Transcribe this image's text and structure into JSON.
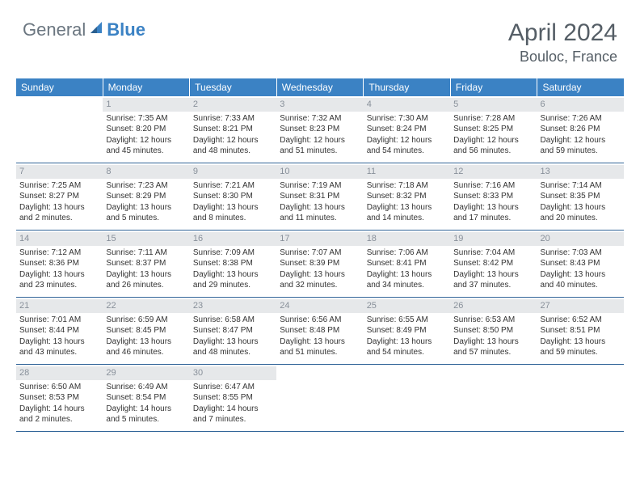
{
  "brand": {
    "part1": "General",
    "part2": "Blue"
  },
  "title": "April 2024",
  "location": "Bouloc, France",
  "weekdays": [
    "Sunday",
    "Monday",
    "Tuesday",
    "Wednesday",
    "Thursday",
    "Friday",
    "Saturday"
  ],
  "colors": {
    "header_bar": "#3b82c4",
    "daynum_bg": "#e6e8ea",
    "daynum_text": "#88909a",
    "rule": "#336699",
    "logo_gray": "#6b7680",
    "title_text": "#555e66"
  },
  "fonts": {
    "title_pt": 30,
    "location_pt": 18,
    "weekday_pt": 12,
    "body_pt": 10,
    "daynum_pt": 11
  },
  "weeks": [
    [
      {
        "n": "",
        "lines": []
      },
      {
        "n": "1",
        "lines": [
          "Sunrise: 7:35 AM",
          "Sunset: 8:20 PM",
          "Daylight: 12 hours",
          "and 45 minutes."
        ]
      },
      {
        "n": "2",
        "lines": [
          "Sunrise: 7:33 AM",
          "Sunset: 8:21 PM",
          "Daylight: 12 hours",
          "and 48 minutes."
        ]
      },
      {
        "n": "3",
        "lines": [
          "Sunrise: 7:32 AM",
          "Sunset: 8:23 PM",
          "Daylight: 12 hours",
          "and 51 minutes."
        ]
      },
      {
        "n": "4",
        "lines": [
          "Sunrise: 7:30 AM",
          "Sunset: 8:24 PM",
          "Daylight: 12 hours",
          "and 54 minutes."
        ]
      },
      {
        "n": "5",
        "lines": [
          "Sunrise: 7:28 AM",
          "Sunset: 8:25 PM",
          "Daylight: 12 hours",
          "and 56 minutes."
        ]
      },
      {
        "n": "6",
        "lines": [
          "Sunrise: 7:26 AM",
          "Sunset: 8:26 PM",
          "Daylight: 12 hours",
          "and 59 minutes."
        ]
      }
    ],
    [
      {
        "n": "7",
        "lines": [
          "Sunrise: 7:25 AM",
          "Sunset: 8:27 PM",
          "Daylight: 13 hours",
          "and 2 minutes."
        ]
      },
      {
        "n": "8",
        "lines": [
          "Sunrise: 7:23 AM",
          "Sunset: 8:29 PM",
          "Daylight: 13 hours",
          "and 5 minutes."
        ]
      },
      {
        "n": "9",
        "lines": [
          "Sunrise: 7:21 AM",
          "Sunset: 8:30 PM",
          "Daylight: 13 hours",
          "and 8 minutes."
        ]
      },
      {
        "n": "10",
        "lines": [
          "Sunrise: 7:19 AM",
          "Sunset: 8:31 PM",
          "Daylight: 13 hours",
          "and 11 minutes."
        ]
      },
      {
        "n": "11",
        "lines": [
          "Sunrise: 7:18 AM",
          "Sunset: 8:32 PM",
          "Daylight: 13 hours",
          "and 14 minutes."
        ]
      },
      {
        "n": "12",
        "lines": [
          "Sunrise: 7:16 AM",
          "Sunset: 8:33 PM",
          "Daylight: 13 hours",
          "and 17 minutes."
        ]
      },
      {
        "n": "13",
        "lines": [
          "Sunrise: 7:14 AM",
          "Sunset: 8:35 PM",
          "Daylight: 13 hours",
          "and 20 minutes."
        ]
      }
    ],
    [
      {
        "n": "14",
        "lines": [
          "Sunrise: 7:12 AM",
          "Sunset: 8:36 PM",
          "Daylight: 13 hours",
          "and 23 minutes."
        ]
      },
      {
        "n": "15",
        "lines": [
          "Sunrise: 7:11 AM",
          "Sunset: 8:37 PM",
          "Daylight: 13 hours",
          "and 26 minutes."
        ]
      },
      {
        "n": "16",
        "lines": [
          "Sunrise: 7:09 AM",
          "Sunset: 8:38 PM",
          "Daylight: 13 hours",
          "and 29 minutes."
        ]
      },
      {
        "n": "17",
        "lines": [
          "Sunrise: 7:07 AM",
          "Sunset: 8:39 PM",
          "Daylight: 13 hours",
          "and 32 minutes."
        ]
      },
      {
        "n": "18",
        "lines": [
          "Sunrise: 7:06 AM",
          "Sunset: 8:41 PM",
          "Daylight: 13 hours",
          "and 34 minutes."
        ]
      },
      {
        "n": "19",
        "lines": [
          "Sunrise: 7:04 AM",
          "Sunset: 8:42 PM",
          "Daylight: 13 hours",
          "and 37 minutes."
        ]
      },
      {
        "n": "20",
        "lines": [
          "Sunrise: 7:03 AM",
          "Sunset: 8:43 PM",
          "Daylight: 13 hours",
          "and 40 minutes."
        ]
      }
    ],
    [
      {
        "n": "21",
        "lines": [
          "Sunrise: 7:01 AM",
          "Sunset: 8:44 PM",
          "Daylight: 13 hours",
          "and 43 minutes."
        ]
      },
      {
        "n": "22",
        "lines": [
          "Sunrise: 6:59 AM",
          "Sunset: 8:45 PM",
          "Daylight: 13 hours",
          "and 46 minutes."
        ]
      },
      {
        "n": "23",
        "lines": [
          "Sunrise: 6:58 AM",
          "Sunset: 8:47 PM",
          "Daylight: 13 hours",
          "and 48 minutes."
        ]
      },
      {
        "n": "24",
        "lines": [
          "Sunrise: 6:56 AM",
          "Sunset: 8:48 PM",
          "Daylight: 13 hours",
          "and 51 minutes."
        ]
      },
      {
        "n": "25",
        "lines": [
          "Sunrise: 6:55 AM",
          "Sunset: 8:49 PM",
          "Daylight: 13 hours",
          "and 54 minutes."
        ]
      },
      {
        "n": "26",
        "lines": [
          "Sunrise: 6:53 AM",
          "Sunset: 8:50 PM",
          "Daylight: 13 hours",
          "and 57 minutes."
        ]
      },
      {
        "n": "27",
        "lines": [
          "Sunrise: 6:52 AM",
          "Sunset: 8:51 PM",
          "Daylight: 13 hours",
          "and 59 minutes."
        ]
      }
    ],
    [
      {
        "n": "28",
        "lines": [
          "Sunrise: 6:50 AM",
          "Sunset: 8:53 PM",
          "Daylight: 14 hours",
          "and 2 minutes."
        ]
      },
      {
        "n": "29",
        "lines": [
          "Sunrise: 6:49 AM",
          "Sunset: 8:54 PM",
          "Daylight: 14 hours",
          "and 5 minutes."
        ]
      },
      {
        "n": "30",
        "lines": [
          "Sunrise: 6:47 AM",
          "Sunset: 8:55 PM",
          "Daylight: 14 hours",
          "and 7 minutes."
        ]
      },
      {
        "n": "",
        "lines": []
      },
      {
        "n": "",
        "lines": []
      },
      {
        "n": "",
        "lines": []
      },
      {
        "n": "",
        "lines": []
      }
    ]
  ]
}
